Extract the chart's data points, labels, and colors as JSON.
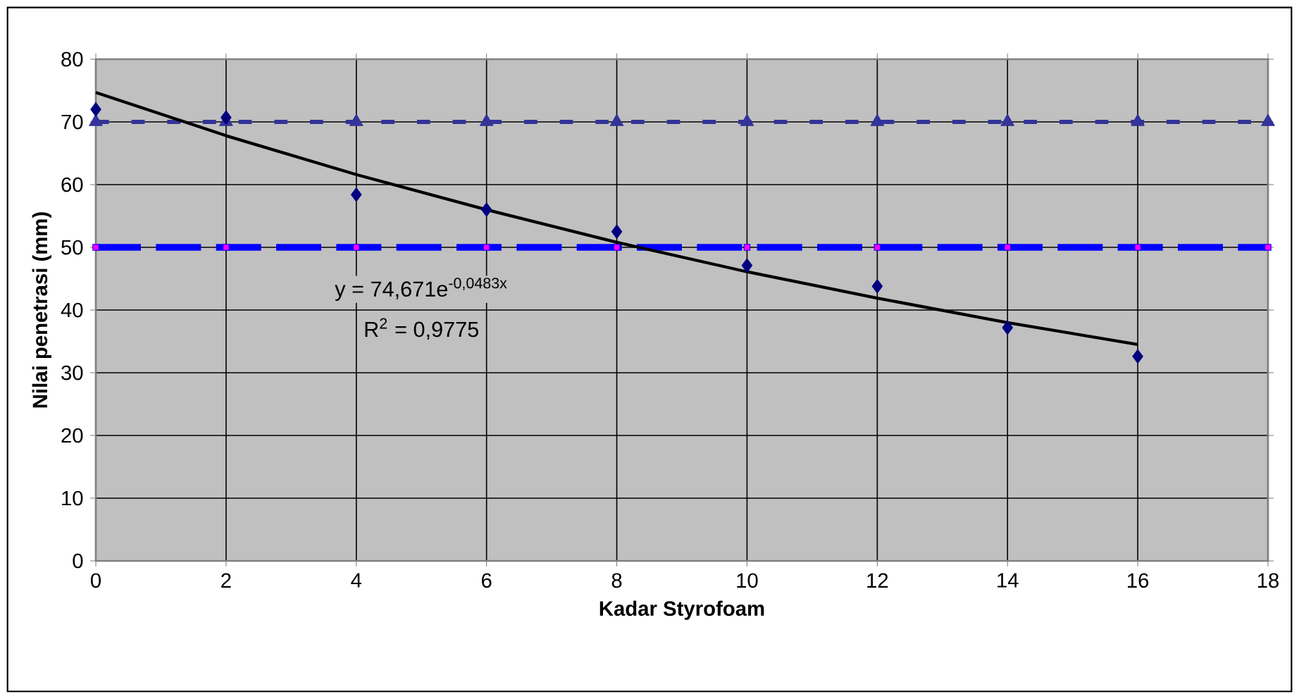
{
  "chart_data": {
    "type": "scatter",
    "xlabel": "Kadar Styrofoam",
    "ylabel": "Nilai penetrasi (mm)",
    "xlim": [
      0,
      18
    ],
    "xticks": [
      0,
      2,
      4,
      6,
      8,
      10,
      12,
      14,
      16,
      18
    ],
    "ylim": [
      0,
      80
    ],
    "yticks": [
      0,
      10,
      20,
      30,
      40,
      50,
      60,
      70,
      80
    ],
    "grid": true,
    "series": [
      {
        "type": "line",
        "color": "#333399",
        "marker": "triangle",
        "line_style": "dashed",
        "x": [
          0,
          2,
          4,
          6,
          8,
          10,
          12,
          14,
          16,
          18
        ],
        "values": [
          70,
          70,
          70,
          70,
          70,
          70,
          70,
          70,
          70,
          70
        ]
      },
      {
        "type": "line",
        "color": "#0000ff",
        "marker": "square",
        "line_style": "dashed",
        "x": [
          0,
          2,
          4,
          6,
          8,
          10,
          12,
          14,
          16,
          18
        ],
        "values": [
          50,
          50,
          50,
          50,
          50,
          50,
          50,
          50,
          50,
          50
        ]
      },
      {
        "type": "line",
        "color": "#000000",
        "marker": "none",
        "line_style": "solid",
        "x": [
          0,
          2,
          4,
          6,
          8,
          10,
          12,
          14,
          16
        ],
        "values": [
          74.7,
          67.8,
          61.6,
          56.0,
          50.8,
          46.1,
          41.9,
          38.0,
          34.5
        ]
      },
      {
        "color": "#000080",
        "marker": "diamond",
        "x": [
          0,
          2,
          4,
          6,
          8,
          10,
          12,
          14,
          16
        ],
        "values": [
          72,
          70.7,
          58.4,
          56,
          52.5,
          47.1,
          43.8,
          37.2,
          32.6
        ]
      }
    ],
    "annotations": [
      "y = 74,671e$^{-0,0483x}$",
      "R$^{2}$ = 0,9775"
    ]
  }
}
